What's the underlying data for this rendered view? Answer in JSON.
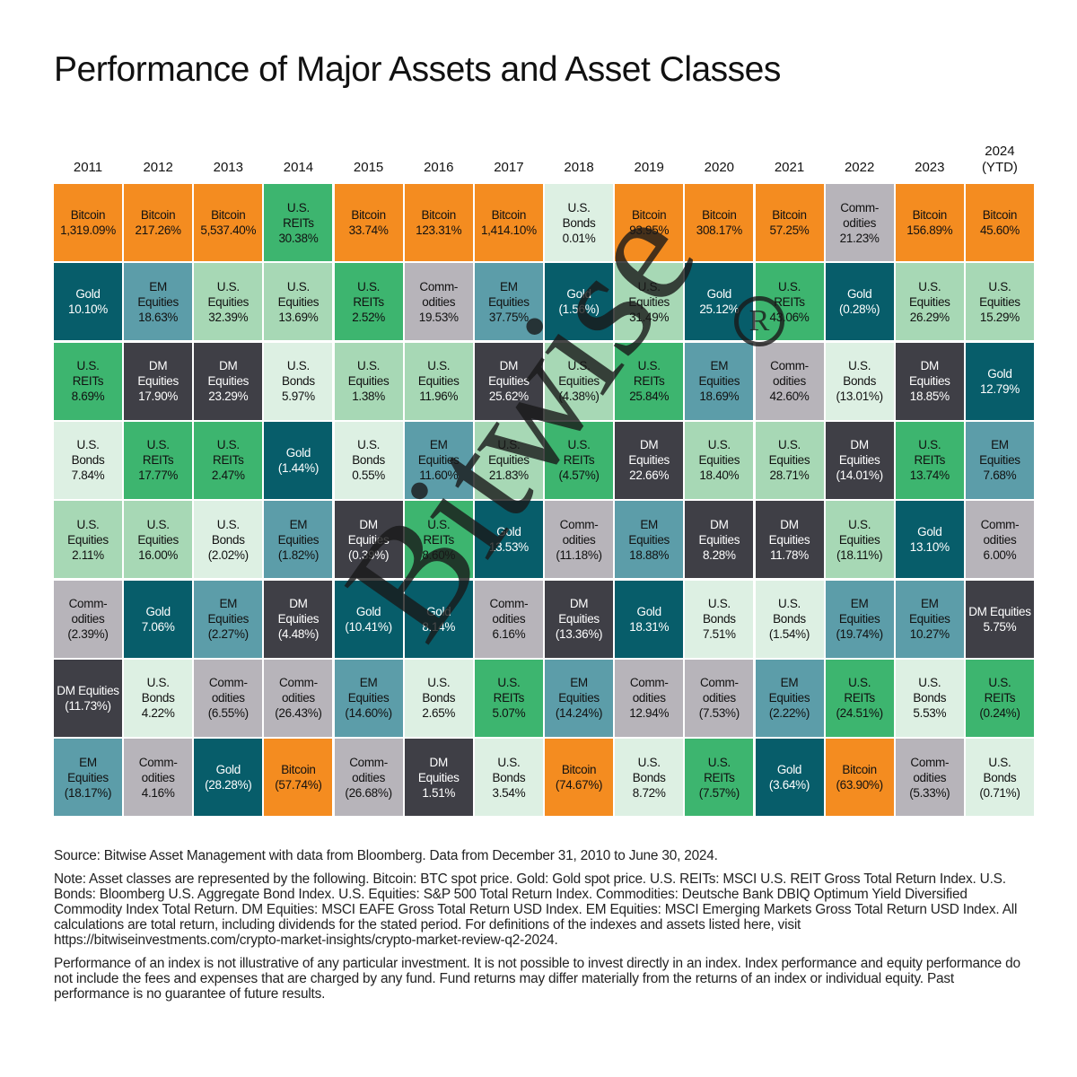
{
  "title": "Performance of Major Assets and Asset Classes",
  "colors": {
    "Bitcoin": {
      "bg": "#F48C20",
      "fg": "#111111"
    },
    "Gold": {
      "bg": "#075D6A",
      "fg": "#ffffff"
    },
    "U.S. REITs": {
      "bg": "#3DB56F",
      "fg": "#111111"
    },
    "U.S. Bonds": {
      "bg": "#DDF0E3",
      "fg": "#111111"
    },
    "U.S. Equities": {
      "bg": "#A7D8B5",
      "fg": "#111111"
    },
    "Commodities": {
      "bg": "#B7B4BA",
      "fg": "#111111"
    },
    "DM Equities": {
      "bg": "#3F3F46",
      "fg": "#ffffff"
    },
    "EM Equities": {
      "bg": "#5C9DA9",
      "fg": "#111111"
    }
  },
  "watermark": {
    "text": "Bitwise",
    "mark": "R"
  },
  "chart_data": {
    "type": "table",
    "title": "Performance of Major Assets and Asset Classes",
    "years": [
      "2011",
      "2012",
      "2013",
      "2014",
      "2015",
      "2016",
      "2017",
      "2018",
      "2019",
      "2020",
      "2021",
      "2022",
      "2023",
      "2024\n(YTD)"
    ],
    "columns": [
      [
        {
          "asset": "Bitcoin",
          "label": "Bitcoin",
          "value": "1,319.09%"
        },
        {
          "asset": "Gold",
          "label": "Gold",
          "value": "10.10%"
        },
        {
          "asset": "U.S. REITs",
          "label": "U.S.\nREITs",
          "value": "8.69%"
        },
        {
          "asset": "U.S. Bonds",
          "label": "U.S.\nBonds",
          "value": "7.84%"
        },
        {
          "asset": "U.S. Equities",
          "label": "U.S.\nEquities",
          "value": "2.11%"
        },
        {
          "asset": "Commodities",
          "label": "Comm-\nodities",
          "value": "(2.39%)"
        },
        {
          "asset": "DM Equities",
          "label": "DM Equities",
          "value": "(11.73%)"
        },
        {
          "asset": "EM Equities",
          "label": "EM\nEquities",
          "value": "(18.17%)"
        }
      ],
      [
        {
          "asset": "Bitcoin",
          "label": "Bitcoin",
          "value": "217.26%"
        },
        {
          "asset": "EM Equities",
          "label": "EM\nEquities",
          "value": "18.63%"
        },
        {
          "asset": "DM Equities",
          "label": "DM\nEquities",
          "value": "17.90%"
        },
        {
          "asset": "U.S. REITs",
          "label": "U.S.\nREITs",
          "value": "17.77%"
        },
        {
          "asset": "U.S. Equities",
          "label": "U.S.\nEquities",
          "value": "16.00%"
        },
        {
          "asset": "Gold",
          "label": "Gold",
          "value": "7.06%"
        },
        {
          "asset": "U.S. Bonds",
          "label": "U.S.\nBonds",
          "value": "4.22%"
        },
        {
          "asset": "Commodities",
          "label": "Comm-\nodities",
          "value": "4.16%"
        }
      ],
      [
        {
          "asset": "Bitcoin",
          "label": "Bitcoin",
          "value": "5,537.40%"
        },
        {
          "asset": "U.S. Equities",
          "label": "U.S.\nEquities",
          "value": "32.39%"
        },
        {
          "asset": "DM Equities",
          "label": "DM\nEquities",
          "value": "23.29%"
        },
        {
          "asset": "U.S. REITs",
          "label": "U.S.\nREITs",
          "value": "2.47%"
        },
        {
          "asset": "U.S. Bonds",
          "label": "U.S.\nBonds",
          "value": "(2.02%)"
        },
        {
          "asset": "EM Equities",
          "label": "EM\nEquities",
          "value": "(2.27%)"
        },
        {
          "asset": "Commodities",
          "label": "Comm-\nodities",
          "value": "(6.55%)"
        },
        {
          "asset": "Gold",
          "label": "Gold",
          "value": "(28.28%)"
        }
      ],
      [
        {
          "asset": "U.S. REITs",
          "label": "U.S.\nREITs",
          "value": "30.38%"
        },
        {
          "asset": "U.S. Equities",
          "label": "U.S.\nEquities",
          "value": "13.69%"
        },
        {
          "asset": "U.S. Bonds",
          "label": "U.S.\nBonds",
          "value": "5.97%"
        },
        {
          "asset": "Gold",
          "label": "Gold",
          "value": "(1.44%)"
        },
        {
          "asset": "EM Equities",
          "label": "EM\nEquities",
          "value": "(1.82%)"
        },
        {
          "asset": "DM Equities",
          "label": "DM\nEquities",
          "value": "(4.48%)"
        },
        {
          "asset": "Commodities",
          "label": "Comm-\nodities",
          "value": "(26.43%)"
        },
        {
          "asset": "Bitcoin",
          "label": "Bitcoin",
          "value": "(57.74%)"
        }
      ],
      [
        {
          "asset": "Bitcoin",
          "label": "Bitcoin",
          "value": "33.74%"
        },
        {
          "asset": "U.S. REITs",
          "label": "U.S.\nREITs",
          "value": "2.52%"
        },
        {
          "asset": "U.S. Equities",
          "label": "U.S.\nEquities",
          "value": "1.38%"
        },
        {
          "asset": "U.S. Bonds",
          "label": "U.S.\nBonds",
          "value": "0.55%"
        },
        {
          "asset": "DM Equities",
          "label": "DM\nEquities",
          "value": "(0.39%)"
        },
        {
          "asset": "Gold",
          "label": "Gold",
          "value": "(10.41%)"
        },
        {
          "asset": "EM Equities",
          "label": "EM\nEquities",
          "value": "(14.60%)"
        },
        {
          "asset": "Commodities",
          "label": "Comm-\nodities",
          "value": "(26.68%)"
        }
      ],
      [
        {
          "asset": "Bitcoin",
          "label": "Bitcoin",
          "value": "123.31%"
        },
        {
          "asset": "Commodities",
          "label": "Comm-\nodities",
          "value": "19.53%"
        },
        {
          "asset": "U.S. Equities",
          "label": "U.S.\nEquities",
          "value": "11.96%"
        },
        {
          "asset": "EM Equities",
          "label": "EM\nEquities",
          "value": "11.60%"
        },
        {
          "asset": "U.S. REITs",
          "label": "U.S.\nREITs",
          "value": "8.60%"
        },
        {
          "asset": "Gold",
          "label": "Gold",
          "value": "8.14%"
        },
        {
          "asset": "U.S. Bonds",
          "label": "U.S.\nBonds",
          "value": "2.65%"
        },
        {
          "asset": "DM Equities",
          "label": "DM\nEquities",
          "value": "1.51%"
        }
      ],
      [
        {
          "asset": "Bitcoin",
          "label": "Bitcoin",
          "value": "1,414.10%"
        },
        {
          "asset": "EM Equities",
          "label": "EM\nEquities",
          "value": "37.75%"
        },
        {
          "asset": "DM Equities",
          "label": "DM\nEquities",
          "value": "25.62%"
        },
        {
          "asset": "U.S. Equities",
          "label": "U.S.\nEquities",
          "value": "21.83%"
        },
        {
          "asset": "Gold",
          "label": "Gold",
          "value": "13.53%"
        },
        {
          "asset": "Commodities",
          "label": "Comm-\nodities",
          "value": "6.16%"
        },
        {
          "asset": "U.S. REITs",
          "label": "U.S.\nREITs",
          "value": "5.07%"
        },
        {
          "asset": "U.S. Bonds",
          "label": "U.S.\nBonds",
          "value": "3.54%"
        }
      ],
      [
        {
          "asset": "U.S. Bonds",
          "label": "U.S.\nBonds",
          "value": "0.01%"
        },
        {
          "asset": "Gold",
          "label": "Gold",
          "value": "(1.56%)"
        },
        {
          "asset": "U.S. Equities",
          "label": "U.S.\nEquities",
          "value": "(4.38%)"
        },
        {
          "asset": "U.S. REITs",
          "label": "U.S.\nREITs",
          "value": "(4.57%)"
        },
        {
          "asset": "Commodities",
          "label": "Comm-\nodities",
          "value": "(11.18%)"
        },
        {
          "asset": "DM Equities",
          "label": "DM\nEquities",
          "value": "(13.36%)"
        },
        {
          "asset": "EM Equities",
          "label": "EM\nEquities",
          "value": "(14.24%)"
        },
        {
          "asset": "Bitcoin",
          "label": "Bitcoin",
          "value": "(74.67%)"
        }
      ],
      [
        {
          "asset": "Bitcoin",
          "label": "Bitcoin",
          "value": "93.95%"
        },
        {
          "asset": "U.S. Equities",
          "label": "U.S.\nEquities",
          "value": "31.49%"
        },
        {
          "asset": "U.S. REITs",
          "label": "U.S.\nREITs",
          "value": "25.84%"
        },
        {
          "asset": "DM Equities",
          "label": "DM\nEquities",
          "value": "22.66%"
        },
        {
          "asset": "EM Equities",
          "label": "EM\nEquities",
          "value": "18.88%"
        },
        {
          "asset": "Gold",
          "label": "Gold",
          "value": "18.31%"
        },
        {
          "asset": "Commodities",
          "label": "Comm-\nodities",
          "value": "12.94%"
        },
        {
          "asset": "U.S. Bonds",
          "label": "U.S.\nBonds",
          "value": "8.72%"
        }
      ],
      [
        {
          "asset": "Bitcoin",
          "label": "Bitcoin",
          "value": "308.17%"
        },
        {
          "asset": "Gold",
          "label": "Gold",
          "value": "25.12%"
        },
        {
          "asset": "EM Equities",
          "label": "EM\nEquities",
          "value": "18.69%"
        },
        {
          "asset": "U.S. Equities",
          "label": "U.S.\nEquities",
          "value": "18.40%"
        },
        {
          "asset": "DM Equities",
          "label": "DM\nEquities",
          "value": "8.28%"
        },
        {
          "asset": "U.S. Bonds",
          "label": "U.S.\nBonds",
          "value": "7.51%"
        },
        {
          "asset": "Commodities",
          "label": "Comm-\nodities",
          "value": "(7.53%)"
        },
        {
          "asset": "U.S. REITs",
          "label": "U.S.\nREITs",
          "value": "(7.57%)"
        }
      ],
      [
        {
          "asset": "Bitcoin",
          "label": "Bitcoin",
          "value": "57.25%"
        },
        {
          "asset": "U.S. REITs",
          "label": "U.S.\nREITs",
          "value": "43.06%"
        },
        {
          "asset": "Commodities",
          "label": "Comm-\nodities",
          "value": "42.60%"
        },
        {
          "asset": "U.S. Equities",
          "label": "U.S.\nEquities",
          "value": "28.71%"
        },
        {
          "asset": "DM Equities",
          "label": "DM\nEquities",
          "value": "11.78%"
        },
        {
          "asset": "U.S. Bonds",
          "label": "U.S.\nBonds",
          "value": "(1.54%)"
        },
        {
          "asset": "EM Equities",
          "label": "EM\nEquities",
          "value": "(2.22%)"
        },
        {
          "asset": "Gold",
          "label": "Gold",
          "value": "(3.64%)"
        }
      ],
      [
        {
          "asset": "Commodities",
          "label": "Comm-\nodities",
          "value": "21.23%"
        },
        {
          "asset": "Gold",
          "label": "Gold",
          "value": "(0.28%)"
        },
        {
          "asset": "U.S. Bonds",
          "label": "U.S.\nBonds",
          "value": "(13.01%)"
        },
        {
          "asset": "DM Equities",
          "label": "DM\nEquities",
          "value": "(14.01%)"
        },
        {
          "asset": "U.S. Equities",
          "label": "U.S.\nEquities",
          "value": "(18.11%)"
        },
        {
          "asset": "EM Equities",
          "label": "EM\nEquities",
          "value": "(19.74%)"
        },
        {
          "asset": "U.S. REITs",
          "label": "U.S.\nREITs",
          "value": "(24.51%)"
        },
        {
          "asset": "Bitcoin",
          "label": "Bitcoin",
          "value": "(63.90%)"
        }
      ],
      [
        {
          "asset": "Bitcoin",
          "label": "Bitcoin",
          "value": "156.89%"
        },
        {
          "asset": "U.S. Equities",
          "label": "U.S.\nEquities",
          "value": "26.29%"
        },
        {
          "asset": "DM Equities",
          "label": "DM\nEquities",
          "value": "18.85%"
        },
        {
          "asset": "U.S. REITs",
          "label": "U.S.\nREITs",
          "value": "13.74%"
        },
        {
          "asset": "Gold",
          "label": "Gold",
          "value": "13.10%"
        },
        {
          "asset": "EM Equities",
          "label": "EM\nEquities",
          "value": "10.27%"
        },
        {
          "asset": "U.S. Bonds",
          "label": "U.S.\nBonds",
          "value": "5.53%"
        },
        {
          "asset": "Commodities",
          "label": "Comm-\nodities",
          "value": "(5.33%)"
        }
      ],
      [
        {
          "asset": "Bitcoin",
          "label": "Bitcoin",
          "value": "45.60%"
        },
        {
          "asset": "U.S. Equities",
          "label": "U.S.\nEquities",
          "value": "15.29%"
        },
        {
          "asset": "Gold",
          "label": "Gold",
          "value": "12.79%"
        },
        {
          "asset": "EM Equities",
          "label": "EM\nEquities",
          "value": "7.68%"
        },
        {
          "asset": "Commodities",
          "label": "Comm-\nodities",
          "value": "6.00%"
        },
        {
          "asset": "DM Equities",
          "label": "DM Equities",
          "value": "5.75%"
        },
        {
          "asset": "U.S. REITs",
          "label": "U.S.\nREITs",
          "value": "(0.24%)"
        },
        {
          "asset": "U.S. Bonds",
          "label": "U.S.\nBonds",
          "value": "(0.71%)"
        }
      ]
    ]
  },
  "notes": {
    "source": "Source: Bitwise Asset Management with data from Bloomberg. Data from December 31, 2010 to June 30, 2024.",
    "note": "Note: Asset classes are represented by the following. Bitcoin: BTC spot price. Gold: Gold spot price. U.S. REITs: MSCI U.S. REIT Gross Total Return Index. U.S. Bonds: Bloomberg U.S. Aggregate Bond Index. U.S. Equities: S&P 500 Total Return Index. Commodities: Deutsche Bank DBIQ Optimum Yield Diversified Commodity Index Total Return. DM Equities: MSCI EAFE Gross Total Return USD Index. EM Equities: MSCI Emerging Markets Gross Total Return USD Index. All calculations are total return, including dividends for the stated period. For definitions of the indexes and assets listed here, visit https://bitwiseinvestments.com/crypto-market-insights/crypto-market-review-q2-2024.",
    "disclaimer": "Performance of an index is not illustrative of any particular investment. It is not possible to invest directly in an index. Index performance and equity performance do not include the fees and expenses that are charged by any fund. Fund returns may differ materially from the returns of an index or individual equity. Past performance is no guarantee of future results."
  }
}
